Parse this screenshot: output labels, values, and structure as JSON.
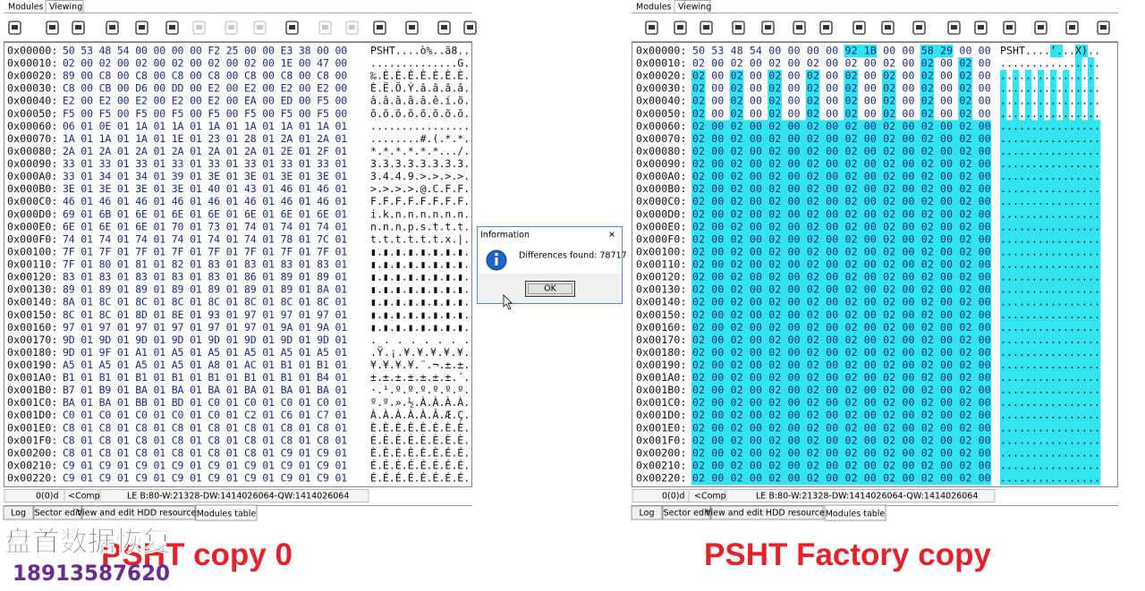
{
  "panels": [
    {
      "top_tabs": [
        "Modules",
        "Viewing"
      ],
      "rows": [
        {
          "addr": "0x00000:",
          "hex": "50 53 48 54 00 00 00 00 F2 25 00 00 E3 38 00 00",
          "ascii": "PSHT....ò%..ã8.."
        },
        {
          "addr": "0x00010:",
          "hex": "02 00 02 00 02 00 02 00 02 00 02 00 1E 00 47 00",
          "ascii": "..............G."
        },
        {
          "addr": "0x00020:",
          "hex": "89 00 C8 00 C8 00 C8 00 C8 00 C8 00 C8 00 C8 00",
          "ascii": "‰.È.È.È.È.È.È.È."
        },
        {
          "addr": "0x00030:",
          "hex": "C8 00 CB 00 D6 00 DD 00 E2 00 E2 00 E2 00 E2 00",
          "ascii": "È.Ë.Ö.Ý.â.â.â.â."
        },
        {
          "addr": "0x00040:",
          "hex": "E2 00 E2 00 E2 00 E2 00 E2 00 EA 00 ED 00 F5 00",
          "ascii": "â.â.â.â.â.ê.í.õ."
        },
        {
          "addr": "0x00050:",
          "hex": "F5 00 F5 00 F5 00 F5 00 F5 00 F5 00 F5 00 F5 00",
          "ascii": "õ.õ.õ.õ.õ.õ.õ.õ."
        },
        {
          "addr": "0x00060:",
          "hex": "06 01 0E 01 1A 01 1A 01 1A 01 1A 01 1A 01 1A 01",
          "ascii": "................"
        },
        {
          "addr": "0x00070:",
          "hex": "1A 01 1A 01 1A 01 1E 01 23 01 28 01 2A 01 2A 01",
          "ascii": "........#.(.*.*."
        },
        {
          "addr": "0x00080:",
          "hex": "2A 01 2A 01 2A 01 2A 01 2A 01 2A 01 2E 01 2F 01",
          "ascii": "*.*.*.*.*.*.../."
        },
        {
          "addr": "0x00090:",
          "hex": "33 01 33 01 33 01 33 01 33 01 33 01 33 01 33 01",
          "ascii": "3.3.3.3.3.3.3.3."
        },
        {
          "addr": "0x000A0:",
          "hex": "33 01 34 01 34 01 39 01 3E 01 3E 01 3E 01 3E 01",
          "ascii": "3.4.4.9.>.>.>.>."
        },
        {
          "addr": "0x000B0:",
          "hex": "3E 01 3E 01 3E 01 3E 01 40 01 43 01 46 01 46 01",
          "ascii": ">.>.>.>.@.C.F.F."
        },
        {
          "addr": "0x000C0:",
          "hex": "46 01 46 01 46 01 46 01 46 01 46 01 46 01 46 01",
          "ascii": "F.F.F.F.F.F.F.F."
        },
        {
          "addr": "0x000D0:",
          "hex": "69 01 6B 01 6E 01 6E 01 6E 01 6E 01 6E 01 6E 01",
          "ascii": "i.k.n.n.n.n.n.n."
        },
        {
          "addr": "0x000E0:",
          "hex": "6E 01 6E 01 6E 01 70 01 73 01 74 01 74 01 74 01",
          "ascii": "n.n.n.p.s.t.t.t."
        },
        {
          "addr": "0x000F0:",
          "hex": "74 01 74 01 74 01 74 01 74 01 74 01 78 01 7C 01",
          "ascii": "t.t.t.t.t.t.x.|."
        },
        {
          "addr": "0x00100:",
          "hex": "7F 01 7F 01 7F 01 7F 01 7F 01 7F 01 7F 01 7F 01",
          "ascii": "▮.▮.▮.▮.▮.▮.▮.▮."
        },
        {
          "addr": "0x00110:",
          "hex": "7F 01 80 01 81 01 82 01 83 01 83 01 83 01 83 01",
          "ascii": "▮.▮.▮.▮.▮.▮.▮.▮."
        },
        {
          "addr": "0x00120:",
          "hex": "83 01 83 01 83 01 83 01 83 01 86 01 89 01 89 01",
          "ascii": "▮.▮.▮.▮.▮.▮.▮.▮."
        },
        {
          "addr": "0x00130:",
          "hex": "89 01 89 01 89 01 89 01 89 01 89 01 89 01 8A 01",
          "ascii": "▮.▮.▮.▮.▮.▮.▮.▮."
        },
        {
          "addr": "0x00140:",
          "hex": "8A 01 8C 01 8C 01 8C 01 8C 01 8C 01 8C 01 8C 01",
          "ascii": "▮.▮.▮.▮.▮.▮.▮.▮."
        },
        {
          "addr": "0x00150:",
          "hex": "8C 01 8C 01 8D 01 8E 01 93 01 97 01 97 01 97 01",
          "ascii": "▮.▮.▮.▮.▮.▮.▮.▮."
        },
        {
          "addr": "0x00160:",
          "hex": "97 01 97 01 97 01 97 01 97 01 97 01 9A 01 9A 01",
          "ascii": "▮.▮.▮.▮.▮.▮.▮.▮."
        },
        {
          "addr": "0x00170:",
          "hex": "9D 01 9D 01 9D 01 9D 01 9D 01 9D 01 9D 01 9D 01",
          "ascii": " . . . . . . . ."
        },
        {
          "addr": "0x00180:",
          "hex": "9D 01 9F 01 A1 01 A5 01 A5 01 A5 01 A5 01 A5 01",
          "ascii": " .Ÿ.¡.¥.¥.¥.¥.¥."
        },
        {
          "addr": "0x00190:",
          "hex": "A5 01 A5 01 A5 01 A5 01 A8 01 AC 01 B1 01 B1 01",
          "ascii": "¥.¥.¥.¥.¨.¬.±.±."
        },
        {
          "addr": "0x001A0:",
          "hex": "B1 01 B1 01 B1 01 B1 01 B1 01 B1 01 B1 01 B4 01",
          "ascii": "±.±.±.±.±.±.±.´."
        },
        {
          "addr": "0x001B0:",
          "hex": "B7 01 B9 01 BA 01 BA 01 BA 01 BA 01 BA 01 BA 01",
          "ascii": "·.¹.º.º.º.º.º.º."
        },
        {
          "addr": "0x001C0:",
          "hex": "BA 01 BA 01 BB 01 BD 01 C0 01 C0 01 C0 01 C0 01",
          "ascii": "º.º.».½.À.À.À.À."
        },
        {
          "addr": "0x001D0:",
          "hex": "C0 01 C0 01 C0 01 C0 01 C0 01 C2 01 C6 01 C7 01",
          "ascii": "À.À.À.À.À.Â.Æ.Ç."
        },
        {
          "addr": "0x001E0:",
          "hex": "C8 01 C8 01 C8 01 C8 01 C8 01 C8 01 C8 01 C8 01",
          "ascii": "È.È.È.È.È.È.È.È."
        },
        {
          "addr": "0x001F0:",
          "hex": "C8 01 C8 01 C8 01 C8 01 C8 01 C8 01 C8 01 C8 01",
          "ascii": "È.È.È.È.È.È.È.È."
        },
        {
          "addr": "0x00200:",
          "hex": "C8 01 C8 01 C8 01 C8 01 C8 01 C8 01 C9 01 C9 01",
          "ascii": "È.È.È.È.È.È.É.É."
        },
        {
          "addr": "0x00210:",
          "hex": "C9 01 C9 01 C9 01 C9 01 C9 01 C9 01 C9 01 C9 01",
          "ascii": "É.É.É.É.É.É.É.É."
        },
        {
          "addr": "0x00220:",
          "hex": "C9 01 C9 01 C9 01 C9 01 C9 01 C9 01 C9 01 C9 01",
          "ascii": "É.É.É.É.É.É.É.É."
        }
      ],
      "status": [
        "0(0)d",
        "<Comp.>",
        "LE B:80-W:21328-DW:1414026064-QW:1414026064"
      ],
      "bottom_tabs": [
        "Log",
        "Sector edit",
        "View and edit HDD resources",
        "Modules table"
      ],
      "caption": "PSHT copy 0"
    },
    {
      "top_tabs": [
        "Modules",
        "Viewing"
      ],
      "rows": [
        {
          "addr": "0x00000:",
          "hex": "50 53 48 54 00 00 00 00 92 1B 00 00 58 29 00 00",
          "ascii": "PSHT....’...X).."
        },
        {
          "addr": "0x00010:",
          "hex": "02 00 02 00 02 00 02 00 02 00 02 00 02 00 02 00",
          "ascii": "................"
        },
        {
          "addr": "0x00020:",
          "hex": "02 00 02 00 02 00 02 00 02 00 02 00 02 00 02 00",
          "ascii": "................"
        },
        {
          "addr": "0x00030:",
          "hex": "02 00 02 00 02 00 02 00 02 00 02 00 02 00 02 00",
          "ascii": "................"
        },
        {
          "addr": "0x00040:",
          "hex": "02 00 02 00 02 00 02 00 02 00 02 00 02 00 02 00",
          "ascii": "................"
        },
        {
          "addr": "0x00050:",
          "hex": "02 00 02 00 02 00 02 00 02 00 02 00 02 00 02 00",
          "ascii": "................"
        },
        {
          "addr": "0x00060:",
          "hex": "02 00 02 00 02 00 02 00 02 00 02 00 02 00 02 00",
          "ascii": "................"
        },
        {
          "addr": "0x00070:",
          "hex": "02 00 02 00 02 00 02 00 02 00 02 00 02 00 02 00",
          "ascii": "................"
        },
        {
          "addr": "0x00080:",
          "hex": "02 00 02 00 02 00 02 00 02 00 02 00 02 00 02 00",
          "ascii": "................"
        },
        {
          "addr": "0x00090:",
          "hex": "02 00 02 00 02 00 02 00 02 00 02 00 02 00 02 00",
          "ascii": "................"
        },
        {
          "addr": "0x000A0:",
          "hex": "02 00 02 00 02 00 02 00 02 00 02 00 02 00 02 00",
          "ascii": "................"
        },
        {
          "addr": "0x000B0:",
          "hex": "02 00 02 00 02 00 02 00 02 00 02 00 02 00 02 00",
          "ascii": "................"
        },
        {
          "addr": "0x000C0:",
          "hex": "02 00 02 00 02 00 02 00 02 00 02 00 02 00 02 00",
          "ascii": "................"
        },
        {
          "addr": "0x000D0:",
          "hex": "02 00 02 00 02 00 02 00 02 00 02 00 02 00 02 00",
          "ascii": "................"
        },
        {
          "addr": "0x000E0:",
          "hex": "02 00 02 00 02 00 02 00 02 00 02 00 02 00 02 00",
          "ascii": "................"
        },
        {
          "addr": "0x000F0:",
          "hex": "02 00 02 00 02 00 02 00 02 00 02 00 02 00 02 00",
          "ascii": "................"
        },
        {
          "addr": "0x00100:",
          "hex": "02 00 02 00 02 00 02 00 02 00 02 00 02 00 02 00",
          "ascii": "................"
        },
        {
          "addr": "0x00110:",
          "hex": "02 00 02 00 02 00 02 00 02 00 02 00 02 00 02 00",
          "ascii": "................"
        },
        {
          "addr": "0x00120:",
          "hex": "02 00 02 00 02 00 02 00 02 00 02 00 02 00 02 00",
          "ascii": "................"
        },
        {
          "addr": "0x00130:",
          "hex": "02 00 02 00 02 00 02 00 02 00 02 00 02 00 02 00",
          "ascii": "................"
        },
        {
          "addr": "0x00140:",
          "hex": "02 00 02 00 02 00 02 00 02 00 02 00 02 00 02 00",
          "ascii": "................"
        },
        {
          "addr": "0x00150:",
          "hex": "02 00 02 00 02 00 02 00 02 00 02 00 02 00 02 00",
          "ascii": "................"
        },
        {
          "addr": "0x00160:",
          "hex": "02 00 02 00 02 00 02 00 02 00 02 00 02 00 02 00",
          "ascii": "................"
        },
        {
          "addr": "0x00170:",
          "hex": "02 00 02 00 02 00 02 00 02 00 02 00 02 00 02 00",
          "ascii": "................"
        },
        {
          "addr": "0x00180:",
          "hex": "02 00 02 00 02 00 02 00 02 00 02 00 02 00 02 00",
          "ascii": "................"
        },
        {
          "addr": "0x00190:",
          "hex": "02 00 02 00 02 00 02 00 02 00 02 00 02 00 02 00",
          "ascii": "................"
        },
        {
          "addr": "0x001A0:",
          "hex": "02 00 02 00 02 00 02 00 02 00 02 00 02 00 02 00",
          "ascii": "................"
        },
        {
          "addr": "0x001B0:",
          "hex": "02 00 02 00 02 00 02 00 02 00 02 00 02 00 02 00",
          "ascii": "................"
        },
        {
          "addr": "0x001C0:",
          "hex": "02 00 02 00 02 00 02 00 02 00 02 00 02 00 02 00",
          "ascii": "................"
        },
        {
          "addr": "0x001D0:",
          "hex": "02 00 02 00 02 00 02 00 02 00 02 00 02 00 02 00",
          "ascii": "................"
        },
        {
          "addr": "0x001E0:",
          "hex": "02 00 02 00 02 00 02 00 02 00 02 00 02 00 02 00",
          "ascii": "................"
        },
        {
          "addr": "0x001F0:",
          "hex": "02 00 02 00 02 00 02 00 02 00 02 00 02 00 02 00",
          "ascii": "................"
        },
        {
          "addr": "0x00200:",
          "hex": "02 00 02 00 02 00 02 00 02 00 02 00 02 00 02 00",
          "ascii": "................"
        },
        {
          "addr": "0x00210:",
          "hex": "02 00 02 00 02 00 02 00 02 00 02 00 02 00 02 00",
          "ascii": "................"
        },
        {
          "addr": "0x00220:",
          "hex": "02 00 02 00 02 00 02 00 02 00 02 00 02 00 02 00",
          "ascii": "................"
        }
      ],
      "status": [
        "0(0)d",
        "<Comp.>",
        "LE B:80-W:21328-DW:1414026064-QW:1414026064"
      ],
      "bottom_tabs": [
        "Log",
        "Sector edit",
        "View and edit HDD resources",
        "Modules table"
      ],
      "caption": "PSHT Factory copy"
    }
  ],
  "dialog": {
    "title": "Information",
    "message": "Differences found: 78717",
    "button": "OK"
  },
  "watermark": {
    "name": "盘首数据恢复",
    "phone": "18913587620"
  }
}
